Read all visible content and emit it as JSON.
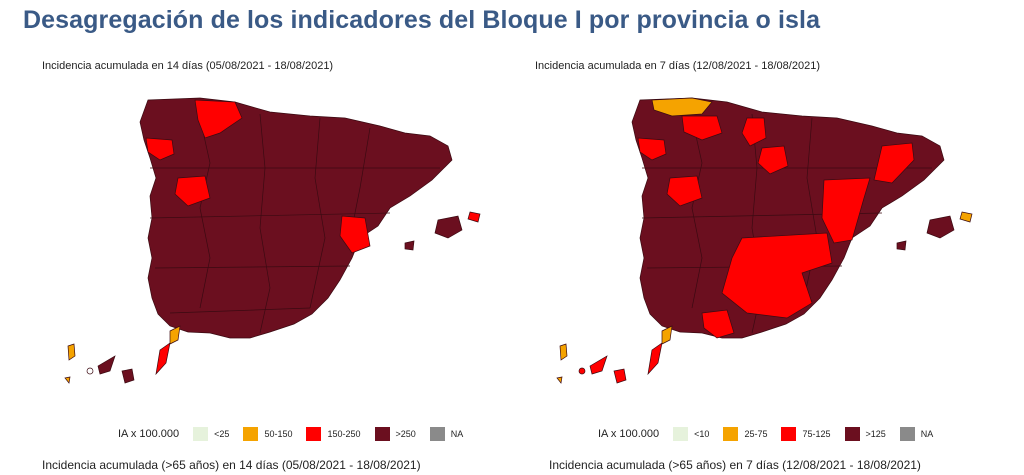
{
  "title": "Desagregación de los indicadores del Bloque I por provincia o isla",
  "colors": {
    "c1": "#e6f2dc",
    "c2": "#f5a300",
    "c3": "#ff0000",
    "c4": "#6b0f1f",
    "na": "#8a8a8a",
    "border": "#3b0a12"
  },
  "map_left": {
    "title": "Incidencia acumulada en 14 días (05/08/2021 - 18/08/2021)",
    "legend_label": "IA x 100.000",
    "legend": [
      "<25",
      "50-150",
      "150-250",
      ">250",
      "NA"
    ],
    "subtitle": "Incidencia acumulada (>65 años) en 14 días (05/08/2021 - 18/08/2021)"
  },
  "map_right": {
    "title": "Incidencia acumulada en 7 días (12/08/2021 - 18/08/2021)",
    "legend_label": "IA x 100.000",
    "legend": [
      "<10",
      "25-75",
      "75-125",
      ">125",
      "NA"
    ],
    "subtitle": "Incidencia acumulada (>65 años) en 7 días (12/08/2021 - 18/08/2021)"
  }
}
